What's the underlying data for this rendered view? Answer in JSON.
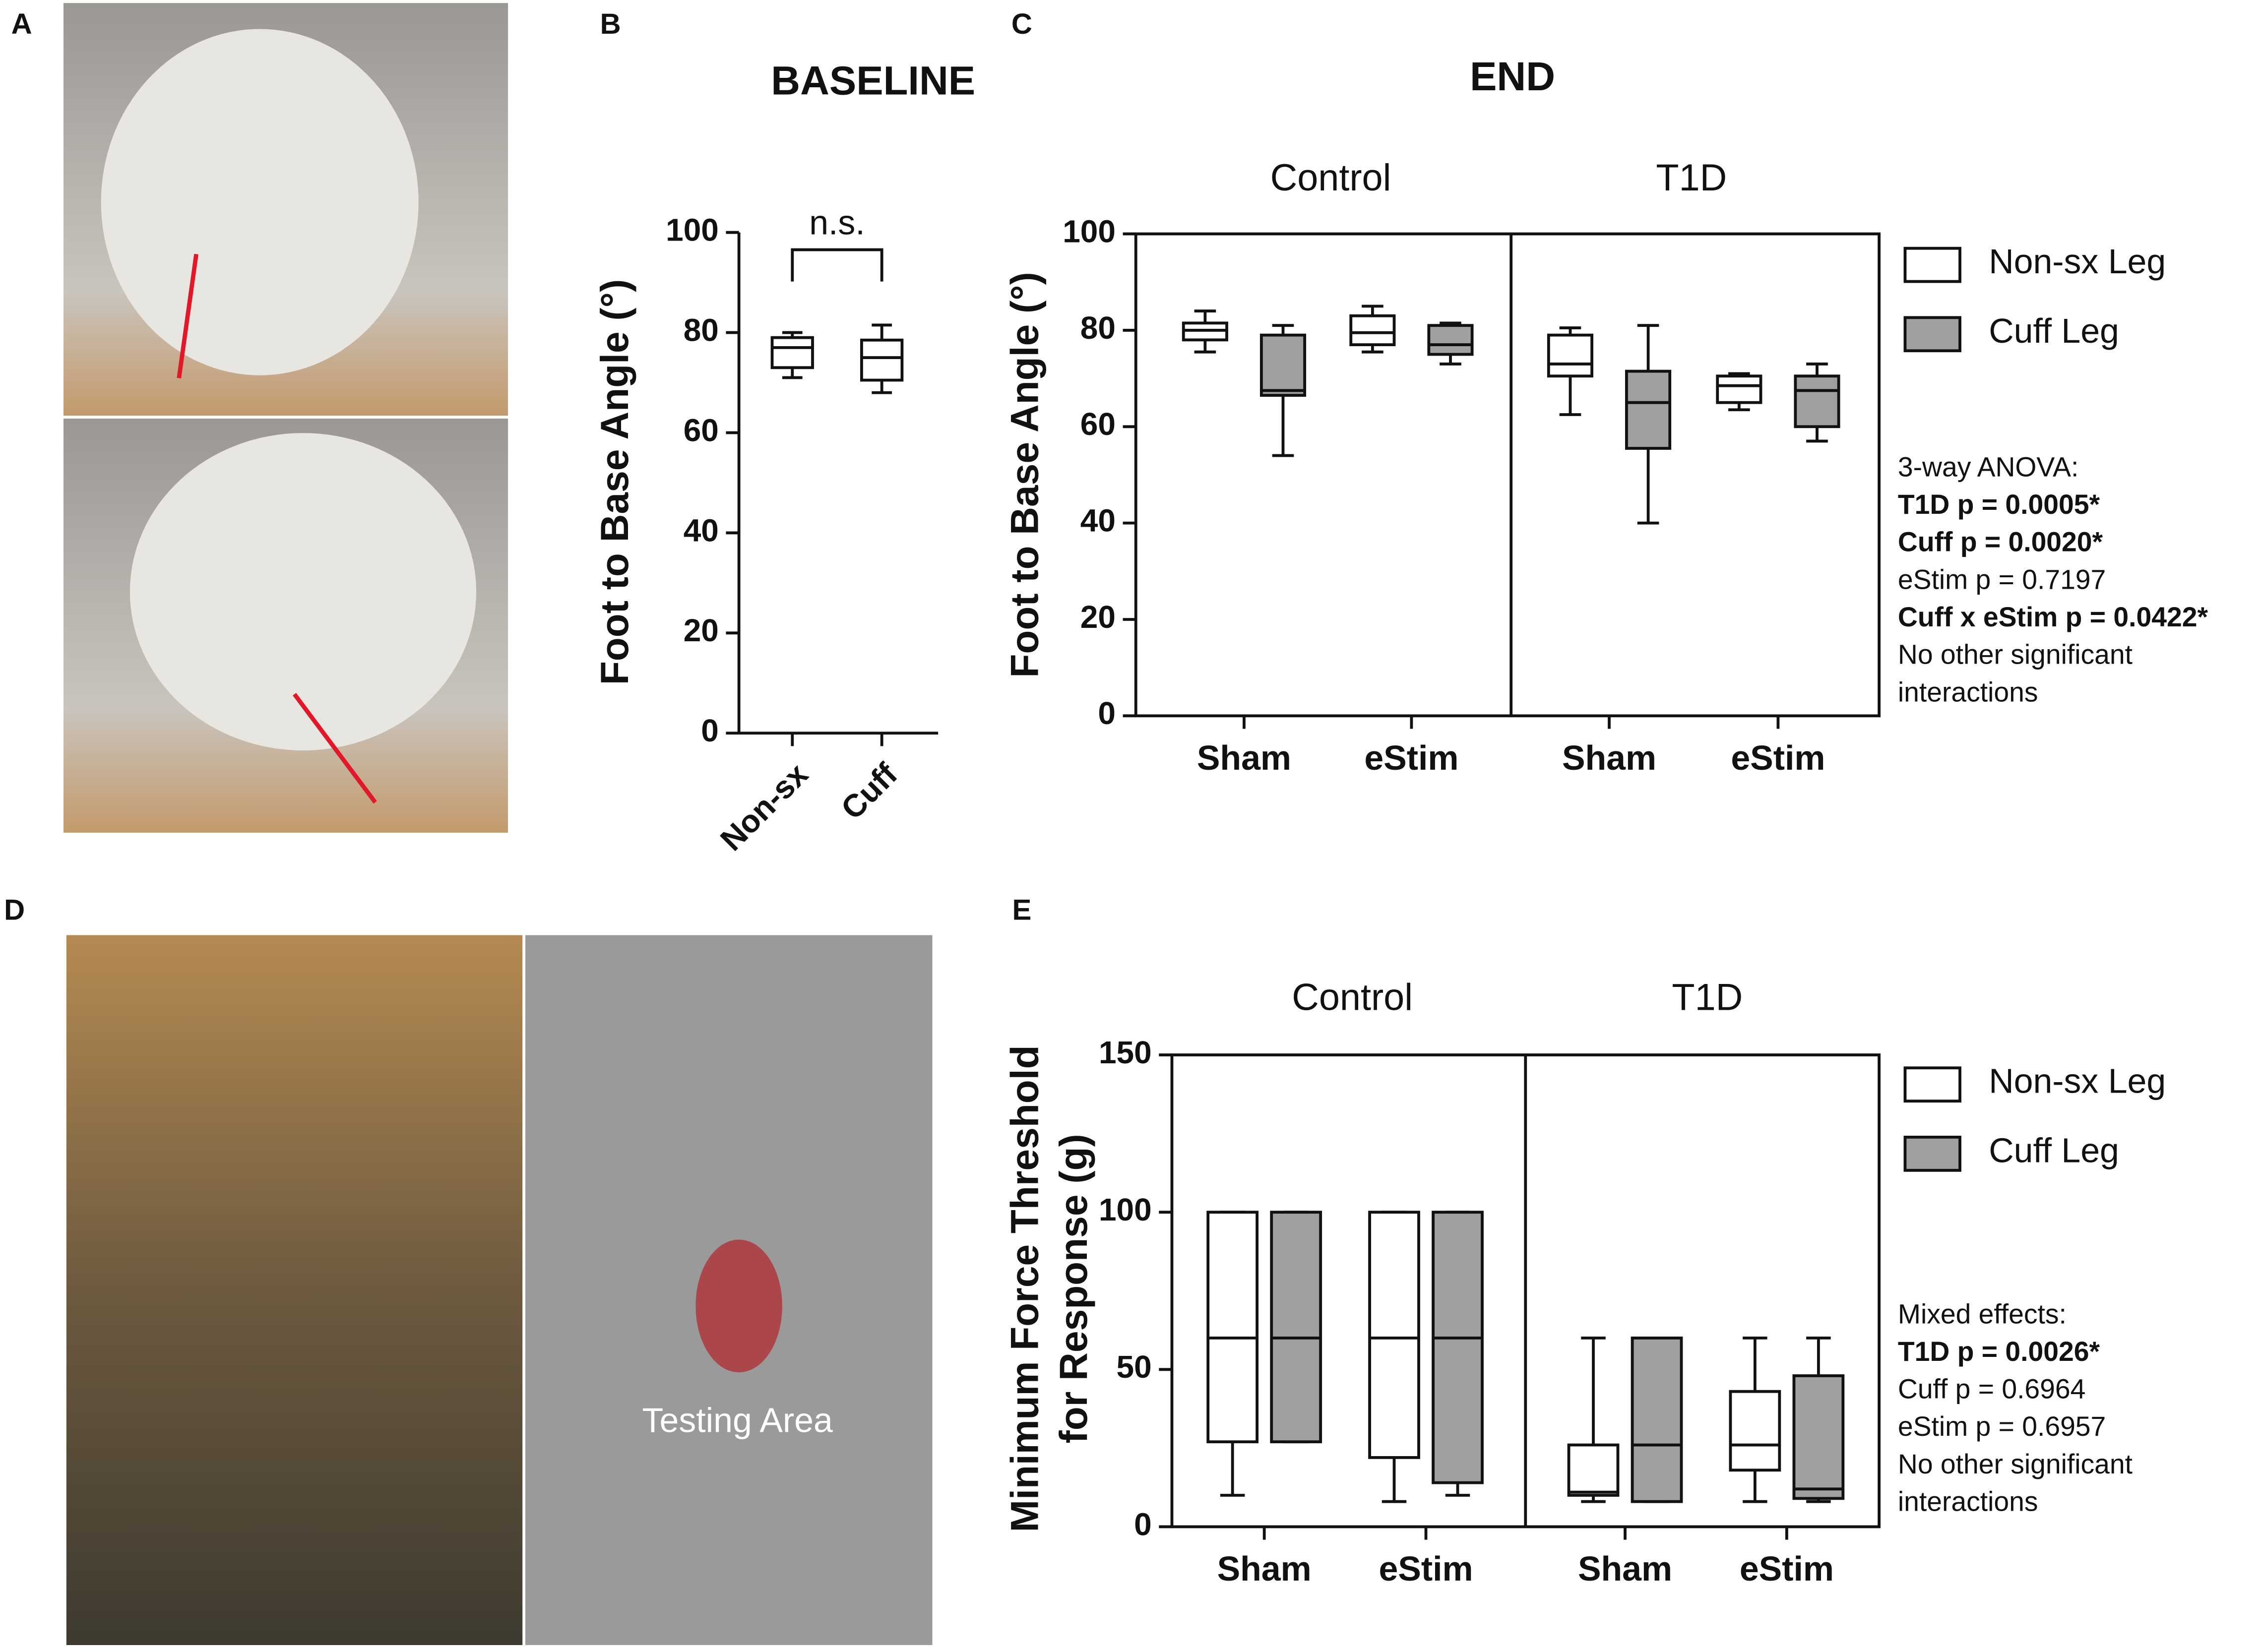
{
  "panels": [
    "A",
    "B",
    "C",
    "D",
    "E"
  ],
  "photo_text": "Testing Area",
  "chart_data": [
    {
      "type": "box",
      "title": "BASELINE",
      "y_label": [
        "Foot to Base Angle (°)"
      ],
      "annotation": "n.s.",
      "categories": [
        "Non-sx",
        "Cuff"
      ],
      "series": [
        {
          "color": "#ffffff",
          "values": [
            {
              "min": 71,
              "q1": 73,
              "median": 77,
              "q3": 79,
              "max": 80
            },
            {
              "min": 68,
              "q1": 70.5,
              "median": 75,
              "q3": 78.5,
              "max": 81.5
            }
          ]
        }
      ],
      "ylim": [
        0,
        100
      ],
      "yticks": [
        0,
        20,
        40,
        60,
        80,
        100
      ]
    },
    {
      "type": "box",
      "title": "END",
      "y_label": [
        "Foot to Base Angle (°)"
      ],
      "groups": [
        "Control",
        "T1D"
      ],
      "categories": [
        "Sham",
        "eStim",
        "Sham",
        "eStim"
      ],
      "series": [
        {
          "name": "Non-sx Leg",
          "color": "#ffffff",
          "values": [
            {
              "min": 75.5,
              "q1": 78,
              "median": 80,
              "q3": 81.5,
              "max": 84
            },
            {
              "min": 75.5,
              "q1": 77,
              "median": 79.5,
              "q3": 83,
              "max": 85
            },
            {
              "min": 62.5,
              "q1": 70.5,
              "median": 73,
              "q3": 79,
              "max": 80.5
            },
            {
              "min": 63.5,
              "q1": 65,
              "median": 68.5,
              "q3": 70.5,
              "max": 71
            }
          ]
        },
        {
          "name": "Cuff Leg",
          "color": "#a0a0a0",
          "values": [
            {
              "min": 54,
              "q1": 66.5,
              "median": 67.5,
              "q3": 79,
              "max": 81
            },
            {
              "min": 73,
              "q1": 75,
              "median": 77,
              "q3": 81,
              "max": 81.5
            },
            {
              "min": 40,
              "q1": 55.5,
              "median": 65,
              "q3": 71.5,
              "max": 81
            },
            {
              "min": 57,
              "q1": 60,
              "median": 67.5,
              "q3": 70.5,
              "max": 73
            }
          ]
        }
      ],
      "ylim": [
        0,
        100
      ],
      "yticks": [
        0,
        20,
        40,
        60,
        80,
        100
      ],
      "stats": [
        {
          "text": "3-way ANOVA:",
          "bold": false
        },
        {
          "text": "T1D p = 0.0005*",
          "bold": true
        },
        {
          "text": "Cuff p = 0.0020*",
          "bold": true
        },
        {
          "text": "eStim p = 0.7197",
          "bold": false
        },
        {
          "text": "Cuff x eStim p = 0.0422*",
          "bold": true
        },
        {
          "text": "No other significant",
          "bold": false
        },
        {
          "text": "interactions",
          "bold": false
        }
      ]
    },
    {
      "type": "box",
      "y_label": [
        "Minimum Force Threshold",
        "for Response (g)"
      ],
      "groups": [
        "Control",
        "T1D"
      ],
      "categories": [
        "Sham",
        "eStim",
        "Sham",
        "eStim"
      ],
      "series": [
        {
          "name": "Non-sx Leg",
          "color": "#ffffff",
          "values": [
            {
              "min": 10,
              "q1": 27,
              "median": 60,
              "q3": 100,
              "max": 100
            },
            {
              "min": 8,
              "q1": 22,
              "median": 60,
              "q3": 100,
              "max": 100
            },
            {
              "min": 8,
              "q1": 10,
              "median": 11,
              "q3": 26,
              "max": 60
            },
            {
              "min": 8,
              "q1": 18,
              "median": 26,
              "q3": 43,
              "max": 60
            }
          ]
        },
        {
          "name": "Cuff Leg",
          "color": "#a0a0a0",
          "values": [
            {
              "min": 27,
              "q1": 27,
              "median": 60,
              "q3": 100,
              "max": 100
            },
            {
              "min": 10,
              "q1": 14,
              "median": 60,
              "q3": 100,
              "max": 100
            },
            {
              "min": 8,
              "q1": 8,
              "median": 26,
              "q3": 60,
              "max": 60
            },
            {
              "min": 8,
              "q1": 9,
              "median": 12,
              "q3": 48,
              "max": 60
            }
          ]
        }
      ],
      "ylim": [
        0,
        150
      ],
      "yticks": [
        0,
        50,
        100,
        150
      ],
      "stats": [
        {
          "text": "Mixed effects:",
          "bold": false
        },
        {
          "text": "T1D p = 0.0026*",
          "bold": true
        },
        {
          "text": "Cuff p = 0.6964",
          "bold": false
        },
        {
          "text": "eStim p = 0.6957",
          "bold": false
        },
        {
          "text": "No other significant",
          "bold": false
        },
        {
          "text": "interactions",
          "bold": false
        }
      ]
    }
  ]
}
